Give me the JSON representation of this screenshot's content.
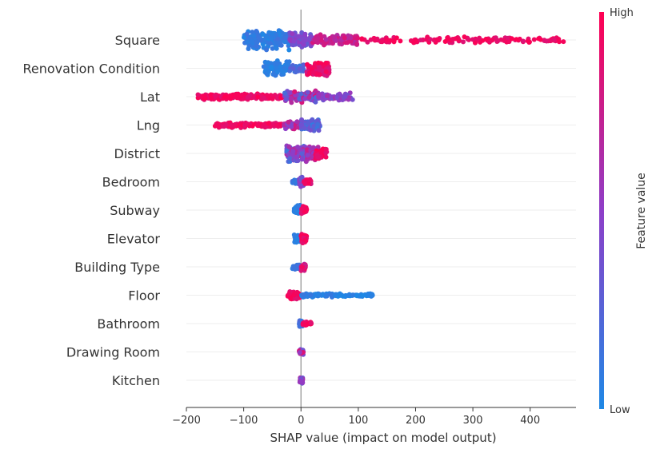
{
  "chart_data": {
    "type": "scatter",
    "subtype": "shap-beeswarm-summary",
    "xlabel": "SHAP value (impact on model output)",
    "xlim": [
      -200,
      480
    ],
    "xticks": [
      -200,
      -100,
      0,
      100,
      200,
      300,
      400
    ],
    "colorbar": {
      "label": "Feature value",
      "high_label": "High",
      "low_label": "Low",
      "low_color": "#1e88e5",
      "high_color": "#ff0052"
    },
    "features": [
      {
        "name": "Square",
        "spread": 1.0,
        "segments": [
          {
            "from": -100,
            "to": -20,
            "n": 150,
            "fv": [
              0.0,
              0.15
            ],
            "amp": 1.0
          },
          {
            "from": -20,
            "to": 20,
            "n": 90,
            "fv": [
              0.3,
              0.55
            ],
            "amp": 0.75
          },
          {
            "from": 20,
            "to": 100,
            "n": 90,
            "fv": [
              0.65,
              0.85
            ],
            "amp": 0.5
          },
          {
            "from": 100,
            "to": 460,
            "n": 140,
            "fv": [
              0.85,
              1.0
            ],
            "amp": 0.3
          }
        ]
      },
      {
        "name": "Renovation Condition",
        "spread": 0.8,
        "segments": [
          {
            "from": -65,
            "to": -20,
            "n": 90,
            "fv": [
              0.0,
              0.1
            ],
            "amp": 0.9
          },
          {
            "from": -20,
            "to": 5,
            "n": 30,
            "fv": [
              0.1,
              0.3
            ],
            "amp": 0.5
          },
          {
            "from": 10,
            "to": 50,
            "n": 100,
            "fv": [
              0.8,
              1.0
            ],
            "amp": 0.95
          }
        ]
      },
      {
        "name": "Lat",
        "spread": 0.6,
        "segments": [
          {
            "from": -180,
            "to": -30,
            "n": 180,
            "fv": [
              0.85,
              1.0
            ],
            "amp": 0.5
          },
          {
            "from": -30,
            "to": 30,
            "n": 110,
            "fv": [
              0.15,
              0.85
            ],
            "amp": 1.0
          },
          {
            "from": 30,
            "to": 90,
            "n": 70,
            "fv": [
              0.35,
              0.65
            ],
            "amp": 0.6
          }
        ]
      },
      {
        "name": "Lng",
        "spread": 0.6,
        "segments": [
          {
            "from": -150,
            "to": -30,
            "n": 130,
            "fv": [
              0.85,
              1.0
            ],
            "amp": 0.45
          },
          {
            "from": -30,
            "to": 5,
            "n": 60,
            "fv": [
              0.4,
              0.9
            ],
            "amp": 0.7
          },
          {
            "from": 0,
            "to": 35,
            "n": 80,
            "fv": [
              0.05,
              0.4
            ],
            "amp": 1.0
          }
        ]
      },
      {
        "name": "District",
        "spread": 0.8,
        "segments": [
          {
            "from": -25,
            "to": 10,
            "n": 140,
            "fv": [
              0.1,
              0.7
            ],
            "amp": 1.0
          },
          {
            "from": 10,
            "to": 30,
            "n": 60,
            "fv": [
              0.5,
              0.8
            ],
            "amp": 0.8
          },
          {
            "from": 25,
            "to": 45,
            "n": 50,
            "fv": [
              0.85,
              1.0
            ],
            "amp": 0.7
          }
        ]
      },
      {
        "name": "Bedroom",
        "spread": 0.45,
        "segments": [
          {
            "from": -15,
            "to": -3,
            "n": 30,
            "fv": [
              0.0,
              0.2
            ],
            "amp": 0.5
          },
          {
            "from": -3,
            "to": 5,
            "n": 50,
            "fv": [
              0.3,
              0.6
            ],
            "amp": 1.0
          },
          {
            "from": 5,
            "to": 18,
            "n": 30,
            "fv": [
              0.8,
              1.0
            ],
            "amp": 0.5
          }
        ]
      },
      {
        "name": "Subway",
        "spread": 0.45,
        "segments": [
          {
            "from": -12,
            "to": 0,
            "n": 40,
            "fv": [
              0.0,
              0.15
            ],
            "amp": 1.0
          },
          {
            "from": 0,
            "to": 10,
            "n": 40,
            "fv": [
              0.85,
              1.0
            ],
            "amp": 0.8
          }
        ]
      },
      {
        "name": "Elevator",
        "spread": 0.45,
        "segments": [
          {
            "from": -12,
            "to": 0,
            "n": 35,
            "fv": [
              0.0,
              0.15
            ],
            "amp": 0.8
          },
          {
            "from": 0,
            "to": 10,
            "n": 40,
            "fv": [
              0.85,
              1.0
            ],
            "amp": 1.0
          }
        ]
      },
      {
        "name": "Building Type",
        "spread": 0.4,
        "segments": [
          {
            "from": -15,
            "to": 0,
            "n": 30,
            "fv": [
              0.0,
              0.2
            ],
            "amp": 0.6
          },
          {
            "from": 0,
            "to": 8,
            "n": 40,
            "fv": [
              0.6,
              1.0
            ],
            "amp": 1.0
          }
        ]
      },
      {
        "name": "Floor",
        "spread": 0.4,
        "segments": [
          {
            "from": -25,
            "to": 0,
            "n": 50,
            "fv": [
              0.85,
              1.0
            ],
            "amp": 1.0
          },
          {
            "from": 0,
            "to": 60,
            "n": 60,
            "fv": [
              0.0,
              0.12
            ],
            "amp": 0.5
          },
          {
            "from": 60,
            "to": 125,
            "n": 60,
            "fv": [
              0.0,
              0.08
            ],
            "amp": 0.35
          }
        ]
      },
      {
        "name": "Bathroom",
        "spread": 0.3,
        "segments": [
          {
            "from": -3,
            "to": 3,
            "n": 40,
            "fv": [
              0.0,
              0.25
            ],
            "amp": 1.0
          },
          {
            "from": 3,
            "to": 18,
            "n": 30,
            "fv": [
              0.85,
              1.0
            ],
            "amp": 0.6
          }
        ]
      },
      {
        "name": "Drawing Room",
        "spread": 0.3,
        "segments": [
          {
            "from": -3,
            "to": 4,
            "n": 50,
            "fv": [
              0.25,
              0.85
            ],
            "amp": 1.0
          }
        ]
      },
      {
        "name": "Kitchen",
        "spread": 0.3,
        "segments": [
          {
            "from": -2,
            "to": 3,
            "n": 50,
            "fv": [
              0.25,
              0.75
            ],
            "amp": 1.0
          }
        ]
      }
    ]
  }
}
